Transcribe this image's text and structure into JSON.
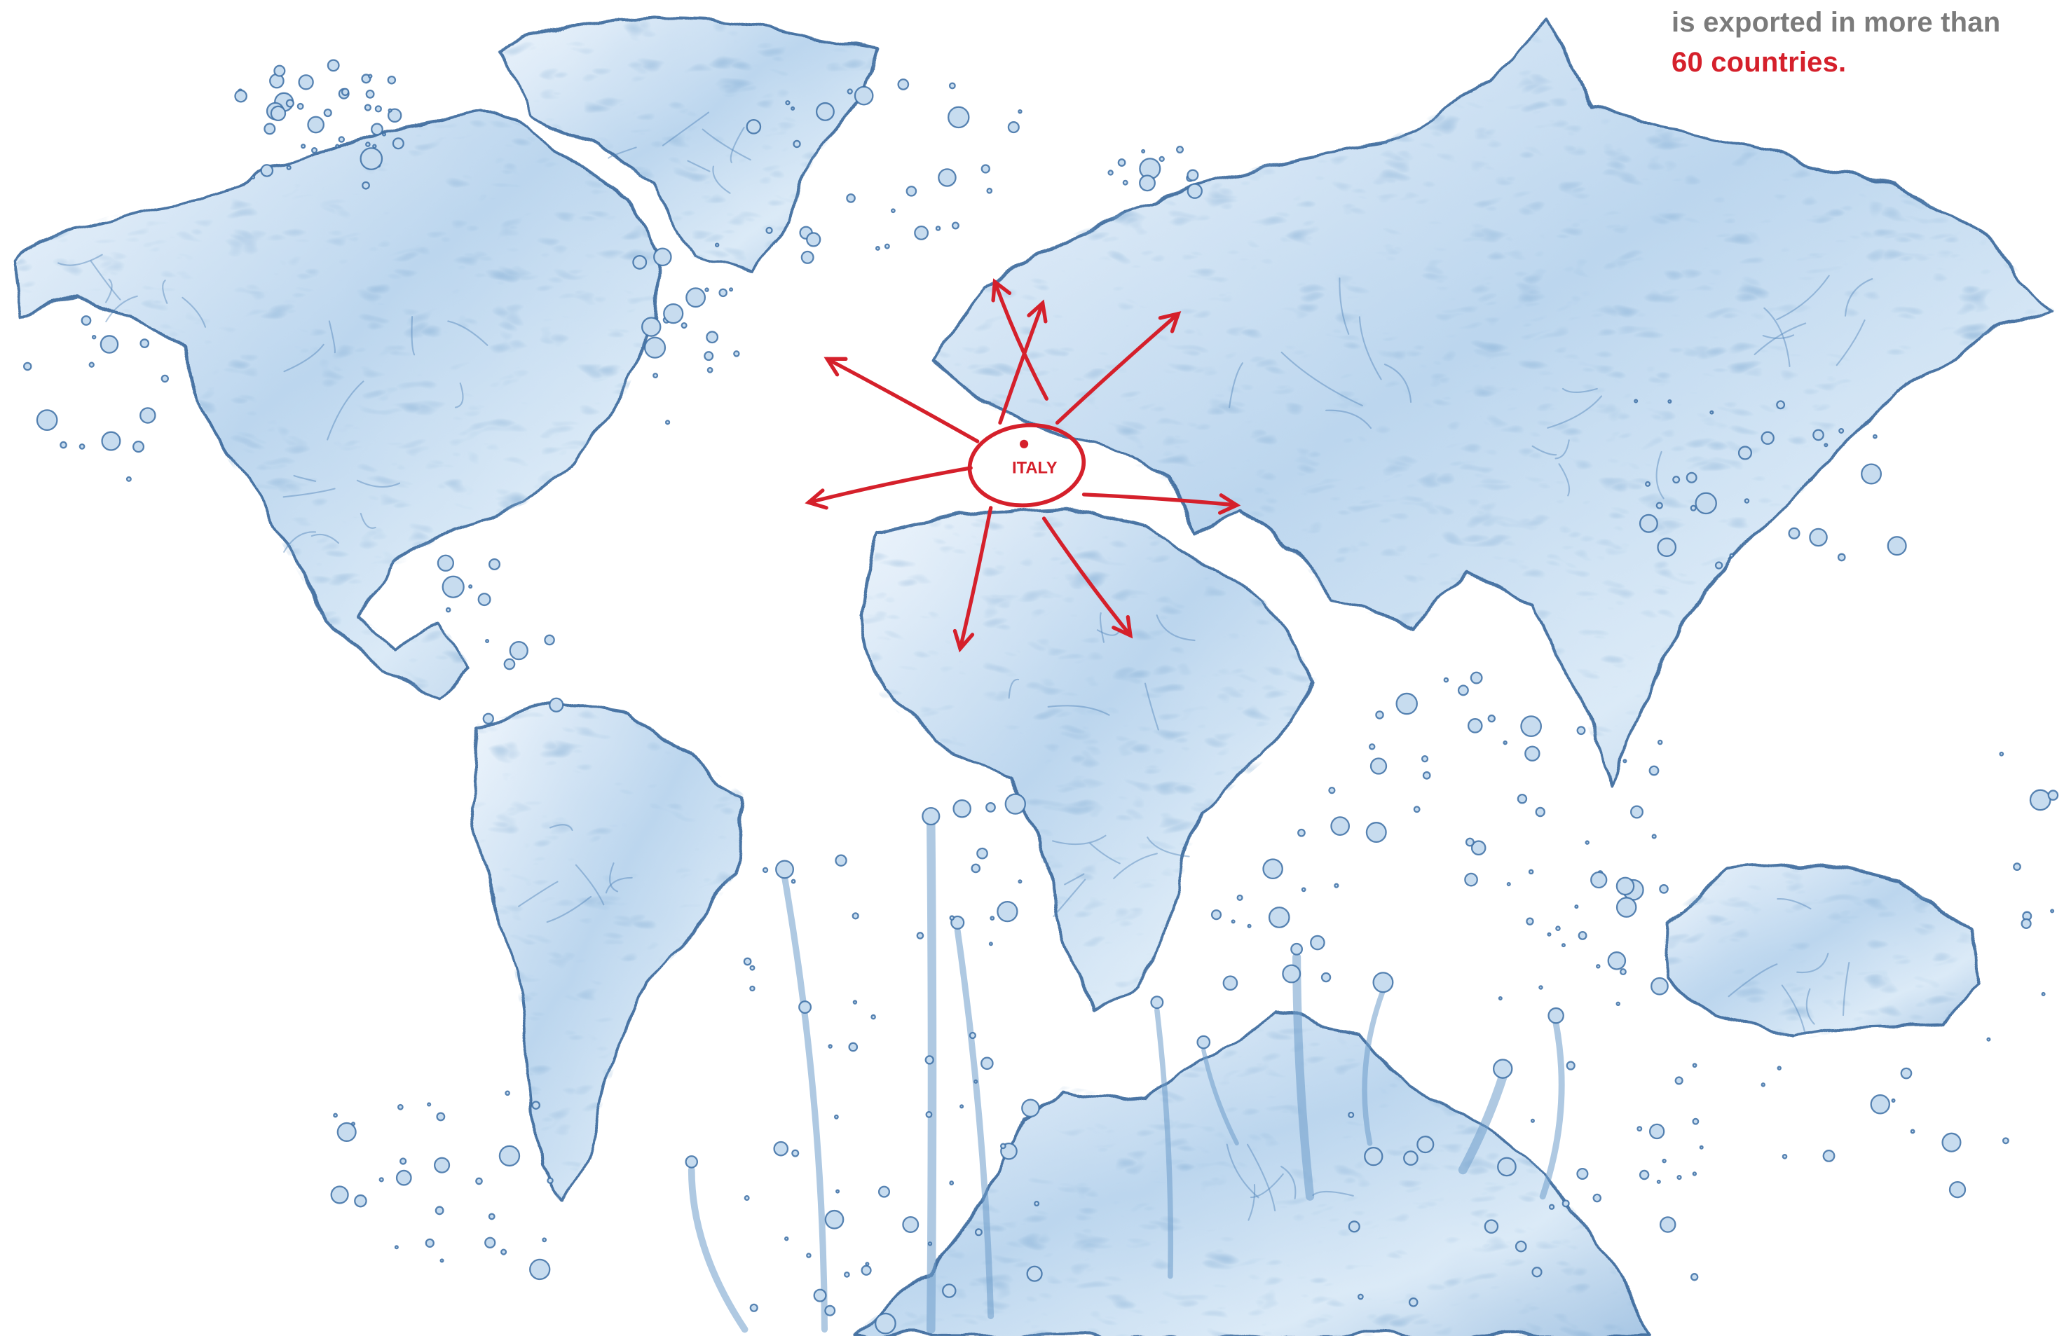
{
  "headline": {
    "line1": "is exported in more than",
    "line2": "60 countries."
  },
  "map": {
    "style": "water-splash-world-map",
    "origin_label": "ITALY",
    "origin_marker_icon": "red-dot-icon",
    "arrow_icon": "hand-drawn-red-arrow-icon"
  },
  "colors": {
    "accent": "#d5202b",
    "text_gray": "#7b7b7b",
    "water_light": "#d6e7f5",
    "water_mid": "#a9c9e6",
    "water_dark": "#2f5f95",
    "background": "#ffffff"
  }
}
